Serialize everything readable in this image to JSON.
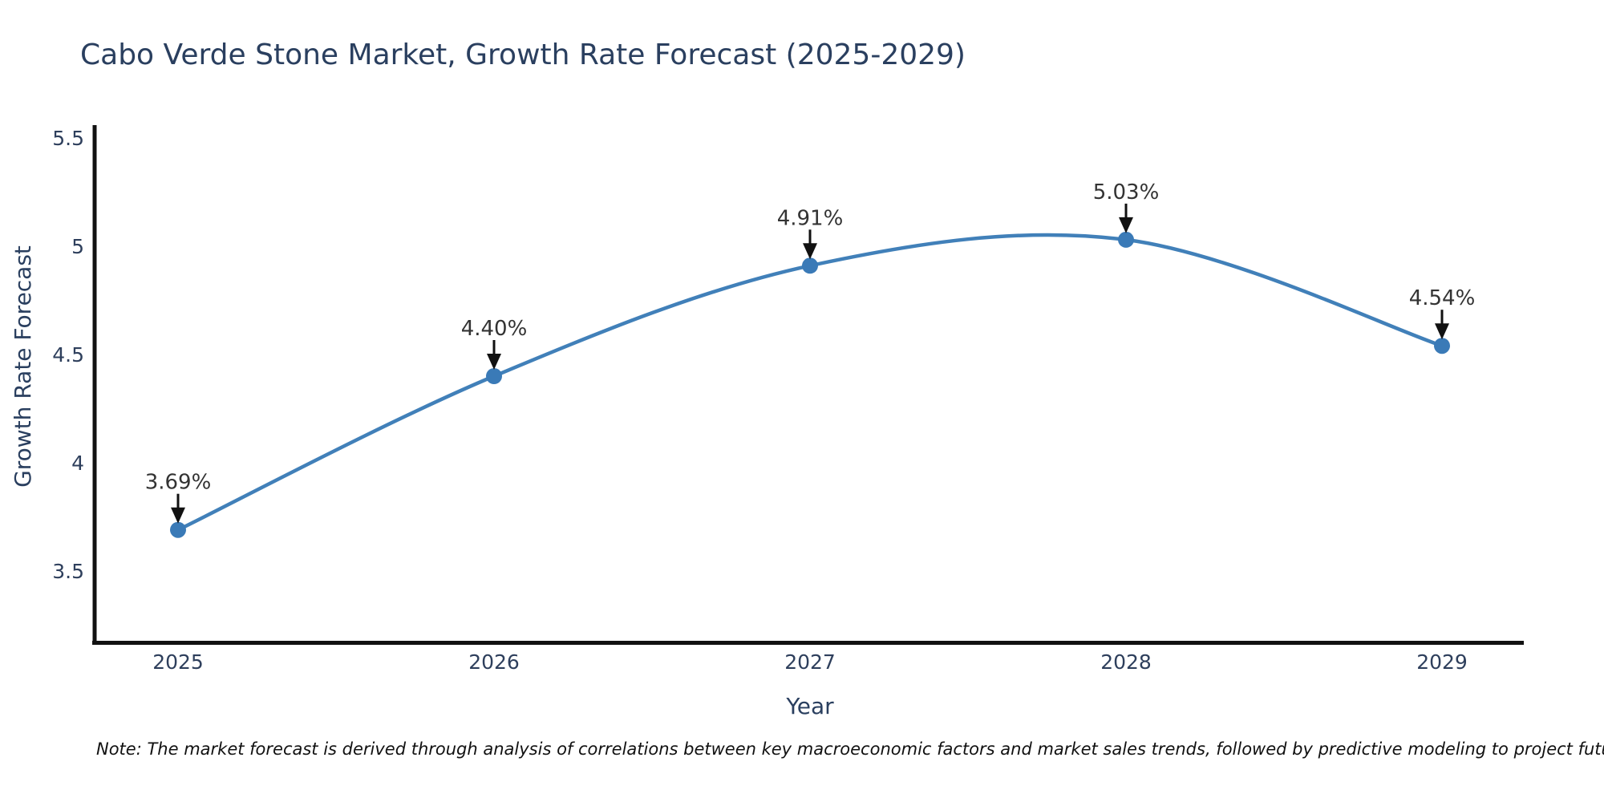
{
  "title": "Cabo Verde Stone Market, Growth Rate Forecast (2025-2029)",
  "note": "Note: The market forecast is derived through analysis of correlations between key macroeconomic factors and market sales trends, followed by predictive modeling to project future sales",
  "chart_data": {
    "type": "line",
    "line_shape": "spline",
    "markers": true,
    "grid": false,
    "title": "Cabo Verde Stone Market, Growth Rate Forecast (2025-2029)",
    "xlabel": "Year",
    "ylabel": "Growth Rate Forecast",
    "x": [
      2025,
      2026,
      2027,
      2028,
      2029
    ],
    "x_tick_labels": [
      "2025",
      "2026",
      "2027",
      "2028",
      "2029"
    ],
    "y_ticks": [
      3.5,
      4,
      4.5,
      5,
      5.5
    ],
    "y_tick_labels": [
      "3.5",
      "4",
      "4.5",
      "5",
      "5.5"
    ],
    "xlim": [
      2024.74,
      2029.26
    ],
    "ylim": [
      3.17,
      5.55
    ],
    "series": [
      {
        "name": "Growth Rate Forecast",
        "values": [
          3.69,
          4.4,
          4.91,
          5.03,
          4.54
        ],
        "point_labels": [
          "3.69%",
          "4.40%",
          "4.91%",
          "5.03%",
          "4.54%"
        ]
      }
    ],
    "colors": {
      "line": "#4180b9",
      "marker": "#3a7ab7",
      "axis_spine": "#111111",
      "title_text": "#2a3f5f",
      "tick_text": "#2e3f5c",
      "annotation_text": "#333333",
      "annotation_arrow": "#111111",
      "background": "#ffffff"
    },
    "legend": null
  }
}
